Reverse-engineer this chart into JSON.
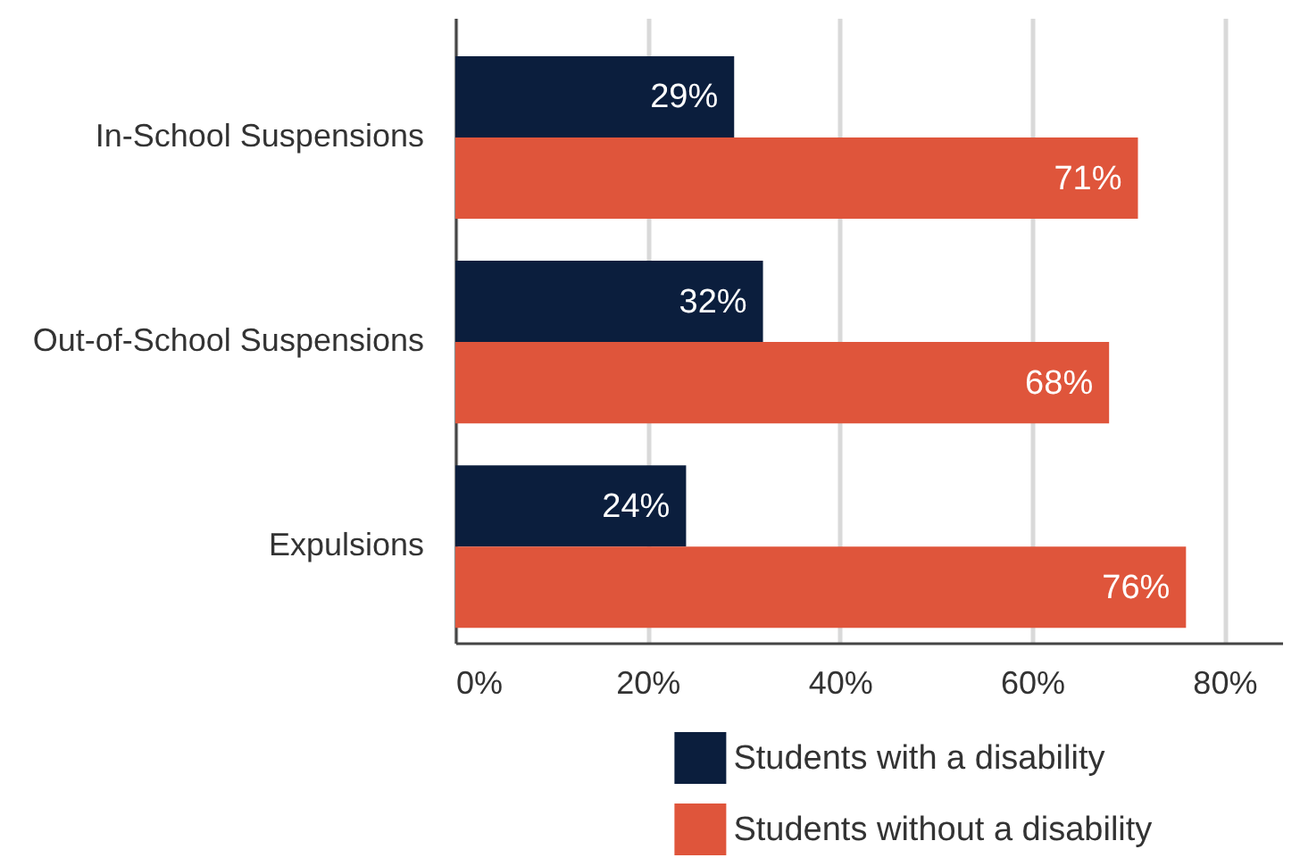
{
  "chart_data": {
    "type": "bar",
    "orientation": "horizontal",
    "categories": [
      "In-School Suspensions",
      "Out-of-School Suspensions",
      "Expulsions"
    ],
    "series": [
      {
        "name": "Students with a disability",
        "color": "#0b1e3d",
        "values": [
          29,
          32,
          24
        ],
        "value_labels": [
          "29%",
          "32%",
          "24%"
        ]
      },
      {
        "name": "Students without a disability",
        "color": "#df553b",
        "values": [
          71,
          68,
          76
        ],
        "value_labels": [
          "71%",
          "68%",
          "76%"
        ]
      }
    ],
    "xlim": [
      0,
      86
    ],
    "xticks": [
      {
        "value": 0,
        "label": "0%"
      },
      {
        "value": 20,
        "label": "20%"
      },
      {
        "value": 40,
        "label": "40%"
      },
      {
        "value": 60,
        "label": "60%"
      },
      {
        "value": 80,
        "label": "80%"
      }
    ],
    "grid": "x",
    "legend": "bottom"
  }
}
